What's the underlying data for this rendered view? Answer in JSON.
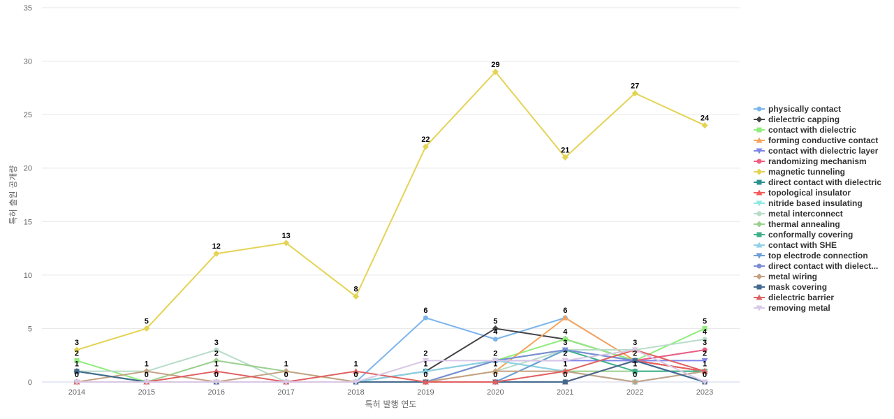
{
  "chart_data": {
    "type": "line",
    "title": "",
    "xlabel": "특허 발행 연도",
    "ylabel": "특허 출원 공개량",
    "categories": [
      "2014",
      "2015",
      "2016",
      "2017",
      "2018",
      "2019",
      "2020",
      "2021",
      "2022",
      "2023"
    ],
    "ylim": [
      0,
      35
    ],
    "yticks": [
      0,
      5,
      10,
      15,
      20,
      25,
      30,
      35
    ],
    "grid": true,
    "legend_position": "right",
    "series": [
      {
        "name": "physically contact",
        "color": "#7cb5ec",
        "marker": "circle",
        "values": [
          0,
          0,
          0,
          0,
          0,
          6,
          4,
          6,
          2,
          3
        ]
      },
      {
        "name": "dielectric capping",
        "color": "#434348",
        "marker": "diamond",
        "values": [
          1,
          0,
          0,
          0,
          0,
          1,
          5,
          4,
          2,
          1
        ]
      },
      {
        "name": "contact with dielectric",
        "color": "#90ed7d",
        "marker": "square",
        "values": [
          2,
          0,
          0,
          0,
          0,
          0,
          2,
          4,
          2,
          5
        ]
      },
      {
        "name": "forming conductive contact",
        "color": "#f7a35c",
        "marker": "triangle",
        "values": [
          0,
          0,
          0,
          0,
          0,
          0,
          1,
          6,
          2,
          1
        ]
      },
      {
        "name": "contact with dielectric layer",
        "color": "#8085e9",
        "marker": "triangle-down",
        "values": [
          0,
          0,
          0,
          0,
          0,
          0,
          2,
          2,
          2,
          2
        ]
      },
      {
        "name": "randomizing mechanism",
        "color": "#f15c80",
        "marker": "circle",
        "values": [
          0,
          0,
          0,
          0,
          0,
          0,
          0,
          0,
          2,
          3
        ]
      },
      {
        "name": "magnetic tunneling",
        "color": "#e4d354",
        "marker": "diamond",
        "values": [
          3,
          5,
          12,
          13,
          8,
          22,
          29,
          21,
          27,
          24
        ],
        "labels": true
      },
      {
        "name": "direct contact with dielectric",
        "color": "#2b908f",
        "marker": "square",
        "values": [
          1,
          0,
          0,
          0,
          0,
          1,
          2,
          3,
          2,
          1
        ]
      },
      {
        "name": "topological insulator",
        "color": "#f45b5b",
        "marker": "triangle",
        "values": [
          0,
          0,
          0,
          0,
          0,
          0,
          0,
          0,
          2,
          1
        ]
      },
      {
        "name": "nitride based insulating",
        "color": "#91e8e1",
        "marker": "triangle-down",
        "values": [
          0,
          0,
          0,
          0,
          0,
          0,
          2,
          1,
          0,
          1
        ]
      },
      {
        "name": "metal interconnect",
        "color": "#b7dcc8",
        "marker": "circle",
        "values": [
          1,
          1,
          3,
          0,
          0,
          0,
          1,
          3,
          3,
          4
        ]
      },
      {
        "name": "thermal annealing",
        "color": "#9bcf8e",
        "marker": "diamond",
        "values": [
          0,
          0,
          2,
          1,
          0,
          0,
          2,
          1,
          1,
          1
        ]
      },
      {
        "name": "conformally covering",
        "color": "#3faf8a",
        "marker": "square",
        "values": [
          0,
          0,
          0,
          0,
          0,
          0,
          0,
          3,
          1,
          1
        ]
      },
      {
        "name": "contact with SHE",
        "color": "#8fd1e6",
        "marker": "triangle",
        "values": [
          0,
          0,
          0,
          0,
          0,
          1,
          2,
          1,
          0,
          1
        ]
      },
      {
        "name": "top electrode connection",
        "color": "#6a9fd6",
        "marker": "triangle-down",
        "values": [
          0,
          0,
          0,
          0,
          0,
          0,
          0,
          3,
          2,
          0
        ]
      },
      {
        "name": "direct contact with dielect...",
        "color": "#7b8dd6",
        "marker": "circle",
        "values": [
          0,
          0,
          0,
          0,
          0,
          0,
          2,
          3,
          2,
          0
        ]
      },
      {
        "name": "metal wiring",
        "color": "#c4a183",
        "marker": "diamond",
        "values": [
          0,
          1,
          0,
          1,
          0,
          0,
          1,
          1,
          0,
          1
        ]
      },
      {
        "name": "mask covering",
        "color": "#436b8f",
        "marker": "square",
        "values": [
          1,
          0,
          0,
          0,
          0,
          0,
          0,
          0,
          2,
          0
        ]
      },
      {
        "name": "dielectric barrier",
        "color": "#e06060",
        "marker": "triangle",
        "values": [
          0,
          0,
          1,
          0,
          1,
          0,
          0,
          1,
          3,
          1
        ]
      },
      {
        "name": "removing metal",
        "color": "#d9c8e6",
        "marker": "triangle-down",
        "values": [
          0,
          0,
          0,
          0,
          0,
          2,
          2,
          2,
          3,
          0
        ]
      }
    ],
    "data_labels": [
      {
        "x": "2014",
        "values": [
          3,
          2,
          1,
          0
        ]
      },
      {
        "x": "2015",
        "values": [
          5,
          1,
          0
        ]
      },
      {
        "x": "2016",
        "values": [
          12,
          3,
          2,
          1,
          0
        ]
      },
      {
        "x": "2017",
        "values": [
          13,
          1,
          0
        ]
      },
      {
        "x": "2018",
        "values": [
          8,
          1,
          0
        ]
      },
      {
        "x": "2019",
        "values": [
          22,
          6,
          2,
          1,
          0
        ]
      },
      {
        "x": "2020",
        "values": [
          29,
          5,
          4,
          2,
          1,
          0
        ]
      },
      {
        "x": "2021",
        "values": [
          21,
          6,
          4,
          3,
          2,
          1,
          0
        ]
      },
      {
        "x": "2022",
        "values": [
          27,
          3,
          2,
          1,
          0
        ]
      },
      {
        "x": "2023",
        "values": [
          24,
          5,
          4,
          3,
          2,
          1,
          0
        ]
      }
    ]
  }
}
